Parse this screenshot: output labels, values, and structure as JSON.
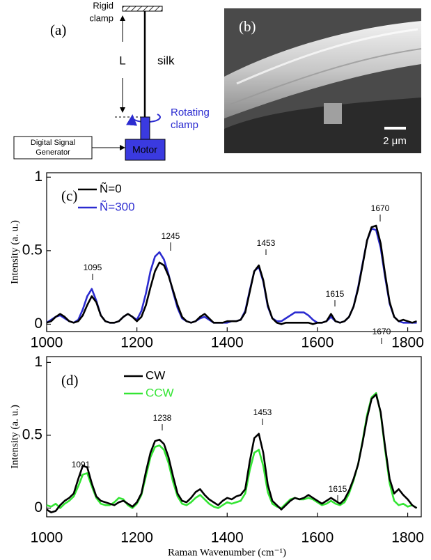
{
  "diagram": {
    "panel_label": "(a)",
    "rigid_clamp": [
      "Rigid",
      "clamp"
    ],
    "length_label": "L",
    "silk_label": "silk",
    "rotating_clamp": [
      "Rotating",
      "clamp"
    ],
    "motor_label": "Motor",
    "generator": [
      "Digital Signal",
      "Generator"
    ]
  },
  "image": {
    "panel_label": "(b)",
    "scale_label": "2 μm"
  },
  "chart_data": [
    {
      "type": "line",
      "panel_label": "(c)",
      "y_label": "Intensity (a. u.)",
      "xlim": [
        1000,
        1830
      ],
      "xticks": [
        1000,
        1200,
        1400,
        1600,
        1800
      ],
      "ylim": [
        -0.05,
        1.03
      ],
      "yticks": [
        0,
        0.5,
        1
      ],
      "annotations": [
        "1095",
        "1245",
        "1453",
        "1615",
        "1670"
      ],
      "x": [
        1000,
        1010,
        1020,
        1030,
        1040,
        1050,
        1060,
        1070,
        1080,
        1090,
        1100,
        1110,
        1120,
        1130,
        1140,
        1150,
        1160,
        1170,
        1180,
        1190,
        1200,
        1210,
        1220,
        1230,
        1240,
        1250,
        1260,
        1270,
        1280,
        1290,
        1300,
        1310,
        1320,
        1330,
        1340,
        1350,
        1360,
        1370,
        1380,
        1390,
        1400,
        1410,
        1420,
        1430,
        1440,
        1450,
        1460,
        1470,
        1480,
        1490,
        1500,
        1510,
        1520,
        1530,
        1540,
        1550,
        1560,
        1570,
        1580,
        1590,
        1600,
        1610,
        1620,
        1630,
        1640,
        1650,
        1660,
        1670,
        1680,
        1690,
        1700,
        1710,
        1720,
        1730,
        1740,
        1750,
        1760,
        1770,
        1780,
        1790,
        1800,
        1810,
        1820
      ],
      "series": [
        {
          "name": "Ñ=300",
          "color": "#2b2bd0",
          "values": [
            0.01,
            0.03,
            0.05,
            0.06,
            0.04,
            0.02,
            0.01,
            0.03,
            0.1,
            0.19,
            0.24,
            0.16,
            0.06,
            0.02,
            0.01,
            0.01,
            0.02,
            0.05,
            0.07,
            0.05,
            0.03,
            0.09,
            0.21,
            0.36,
            0.46,
            0.49,
            0.44,
            0.34,
            0.22,
            0.11,
            0.04,
            0.02,
            0.01,
            0.02,
            0.04,
            0.05,
            0.03,
            0.01,
            0.01,
            0.01,
            0.01,
            0.02,
            0.02,
            0.03,
            0.09,
            0.23,
            0.36,
            0.39,
            0.29,
            0.12,
            0.04,
            0.02,
            0.02,
            0.04,
            0.06,
            0.08,
            0.08,
            0.08,
            0.06,
            0.03,
            0.01,
            0.01,
            0.02,
            0.05,
            0.02,
            0.01,
            0.02,
            0.05,
            0.12,
            0.25,
            0.41,
            0.57,
            0.65,
            0.64,
            0.52,
            0.32,
            0.14,
            0.05,
            0.02,
            0.01,
            0.01,
            0.01,
            0.01
          ]
        },
        {
          "name": "Ñ=0",
          "color": "#000000",
          "values": [
            0.01,
            0.02,
            0.05,
            0.07,
            0.05,
            0.02,
            0.01,
            0.02,
            0.06,
            0.13,
            0.19,
            0.15,
            0.06,
            0.02,
            0.01,
            0.01,
            0.02,
            0.05,
            0.07,
            0.05,
            0.02,
            0.05,
            0.13,
            0.25,
            0.36,
            0.42,
            0.4,
            0.33,
            0.23,
            0.13,
            0.05,
            0.02,
            0.01,
            0.02,
            0.05,
            0.07,
            0.04,
            0.01,
            0.01,
            0.01,
            0.02,
            0.02,
            0.02,
            0.03,
            0.08,
            0.22,
            0.36,
            0.4,
            0.3,
            0.13,
            0.04,
            0.01,
            0.0,
            0.01,
            0.01,
            0.01,
            0.01,
            0.01,
            0.01,
            0.0,
            0.01,
            0.01,
            0.02,
            0.07,
            0.02,
            0.01,
            0.02,
            0.05,
            0.12,
            0.24,
            0.4,
            0.57,
            0.66,
            0.67,
            0.55,
            0.34,
            0.15,
            0.05,
            0.02,
            0.03,
            0.02,
            0.01,
            0.02
          ]
        }
      ]
    },
    {
      "type": "line",
      "panel_label": "(d)",
      "y_label": "Intensity (a. u.)",
      "x_label": "Raman Wavenumber (cm⁻¹)",
      "xlim": [
        1000,
        1830
      ],
      "xticks": [
        1000,
        1200,
        1400,
        1600,
        1800
      ],
      "ylim": [
        -0.06,
        1.04
      ],
      "yticks": [
        0,
        0.5,
        1
      ],
      "annotations": [
        "1091",
        "1238",
        "1453",
        "1615",
        "1670"
      ],
      "x": [
        1000,
        1010,
        1020,
        1030,
        1040,
        1050,
        1060,
        1070,
        1080,
        1090,
        1100,
        1110,
        1120,
        1130,
        1140,
        1150,
        1160,
        1170,
        1180,
        1190,
        1200,
        1210,
        1220,
        1230,
        1240,
        1250,
        1260,
        1270,
        1280,
        1290,
        1300,
        1310,
        1320,
        1330,
        1340,
        1350,
        1360,
        1370,
        1380,
        1390,
        1400,
        1410,
        1420,
        1430,
        1440,
        1450,
        1460,
        1470,
        1480,
        1490,
        1500,
        1510,
        1520,
        1530,
        1540,
        1550,
        1560,
        1570,
        1580,
        1590,
        1600,
        1610,
        1620,
        1630,
        1640,
        1650,
        1660,
        1670,
        1680,
        1690,
        1700,
        1710,
        1720,
        1730,
        1740,
        1750,
        1760,
        1770,
        1780,
        1790,
        1800,
        1810,
        1820
      ],
      "series": [
        {
          "name": "CCW",
          "color": "#33e533",
          "values": [
            0.02,
            0.01,
            0.03,
            0.0,
            0.03,
            0.05,
            0.08,
            0.15,
            0.23,
            0.24,
            0.15,
            0.07,
            0.03,
            0.02,
            0.02,
            0.04,
            0.07,
            0.06,
            0.02,
            0.0,
            0.03,
            0.09,
            0.22,
            0.35,
            0.42,
            0.43,
            0.4,
            0.31,
            0.18,
            0.08,
            0.03,
            0.02,
            0.04,
            0.07,
            0.09,
            0.06,
            0.03,
            0.01,
            0.0,
            0.02,
            0.04,
            0.03,
            0.04,
            0.05,
            0.1,
            0.26,
            0.38,
            0.4,
            0.29,
            0.11,
            0.03,
            0.01,
            0.0,
            0.03,
            0.06,
            0.07,
            0.06,
            0.06,
            0.07,
            0.06,
            0.04,
            0.02,
            0.03,
            0.05,
            0.03,
            0.02,
            0.04,
            0.1,
            0.19,
            0.3,
            0.46,
            0.64,
            0.76,
            0.79,
            0.65,
            0.4,
            0.17,
            0.05,
            0.02,
            0.03,
            0.01,
            0.02,
            0.0
          ]
        },
        {
          "name": "CW",
          "color": "#000000",
          "values": [
            -0.01,
            -0.03,
            -0.02,
            0.02,
            0.05,
            0.07,
            0.1,
            0.2,
            0.29,
            0.28,
            0.17,
            0.08,
            0.05,
            0.04,
            0.03,
            0.02,
            0.04,
            0.05,
            0.03,
            0.01,
            0.04,
            0.1,
            0.25,
            0.38,
            0.46,
            0.47,
            0.44,
            0.35,
            0.22,
            0.1,
            0.05,
            0.04,
            0.07,
            0.11,
            0.13,
            0.09,
            0.06,
            0.04,
            0.02,
            0.05,
            0.07,
            0.06,
            0.08,
            0.09,
            0.13,
            0.32,
            0.48,
            0.51,
            0.38,
            0.16,
            0.05,
            0.02,
            -0.01,
            0.02,
            0.05,
            0.07,
            0.06,
            0.07,
            0.09,
            0.07,
            0.05,
            0.03,
            0.05,
            0.07,
            0.05,
            0.03,
            0.06,
            0.12,
            0.2,
            0.3,
            0.45,
            0.62,
            0.75,
            0.78,
            0.66,
            0.42,
            0.2,
            0.1,
            0.13,
            0.09,
            0.06,
            0.02,
            0.0
          ]
        }
      ]
    }
  ]
}
